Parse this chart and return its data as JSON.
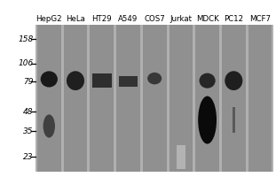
{
  "cell_lines": [
    "HepG2",
    "HeLa",
    "HT29",
    "A549",
    "COS7",
    "Jurkat",
    "MDCK",
    "PC12",
    "MCF7"
  ],
  "mw_labels": [
    "158",
    "106",
    "79",
    "48",
    "35",
    "23"
  ],
  "mw_positions": [
    158,
    106,
    79,
    48,
    35,
    23
  ],
  "bg_color": "#b0b0b0",
  "lane_color": "#909090",
  "separator_color": "#c8c8c8",
  "label_fontsize": 6.2,
  "mw_fontsize": 6.5,
  "bands": [
    {
      "lane": 0,
      "mw": 82,
      "bw": 0.72,
      "bh": 12,
      "intensity": 0.9,
      "shape": "ellipse"
    },
    {
      "lane": 0,
      "mw": 38,
      "bw": 0.5,
      "bh": 8,
      "intensity": 0.75,
      "shape": "ellipse"
    },
    {
      "lane": 1,
      "mw": 80,
      "bw": 0.75,
      "bh": 14,
      "intensity": 0.88,
      "shape": "ellipse"
    },
    {
      "lane": 2,
      "mw": 80,
      "bw": 0.82,
      "bh": 10,
      "intensity": 0.82,
      "shape": "rect"
    },
    {
      "lane": 3,
      "mw": 79,
      "bw": 0.78,
      "bh": 8,
      "intensity": 0.8,
      "shape": "rect"
    },
    {
      "lane": 4,
      "mw": 83,
      "bw": 0.6,
      "bh": 9,
      "intensity": 0.78,
      "shape": "ellipse"
    },
    {
      "lane": 6,
      "mw": 80,
      "bw": 0.68,
      "bh": 11,
      "intensity": 0.85,
      "shape": "ellipse"
    },
    {
      "lane": 6,
      "mw": 42,
      "bw": 0.78,
      "bh": 18,
      "intensity": 0.96,
      "shape": "ellipse"
    },
    {
      "lane": 7,
      "mw": 80,
      "bw": 0.75,
      "bh": 14,
      "intensity": 0.88,
      "shape": "ellipse"
    },
    {
      "lane": 7,
      "mw": 42,
      "bw": 0.12,
      "bh": 10,
      "intensity": 0.65,
      "shape": "rect"
    },
    {
      "lane": 5,
      "mw": 23,
      "bw": 0.4,
      "bh": 5,
      "intensity": 0.3,
      "shape": "rect"
    }
  ],
  "mw_log_min": 18,
  "mw_log_max": 200
}
